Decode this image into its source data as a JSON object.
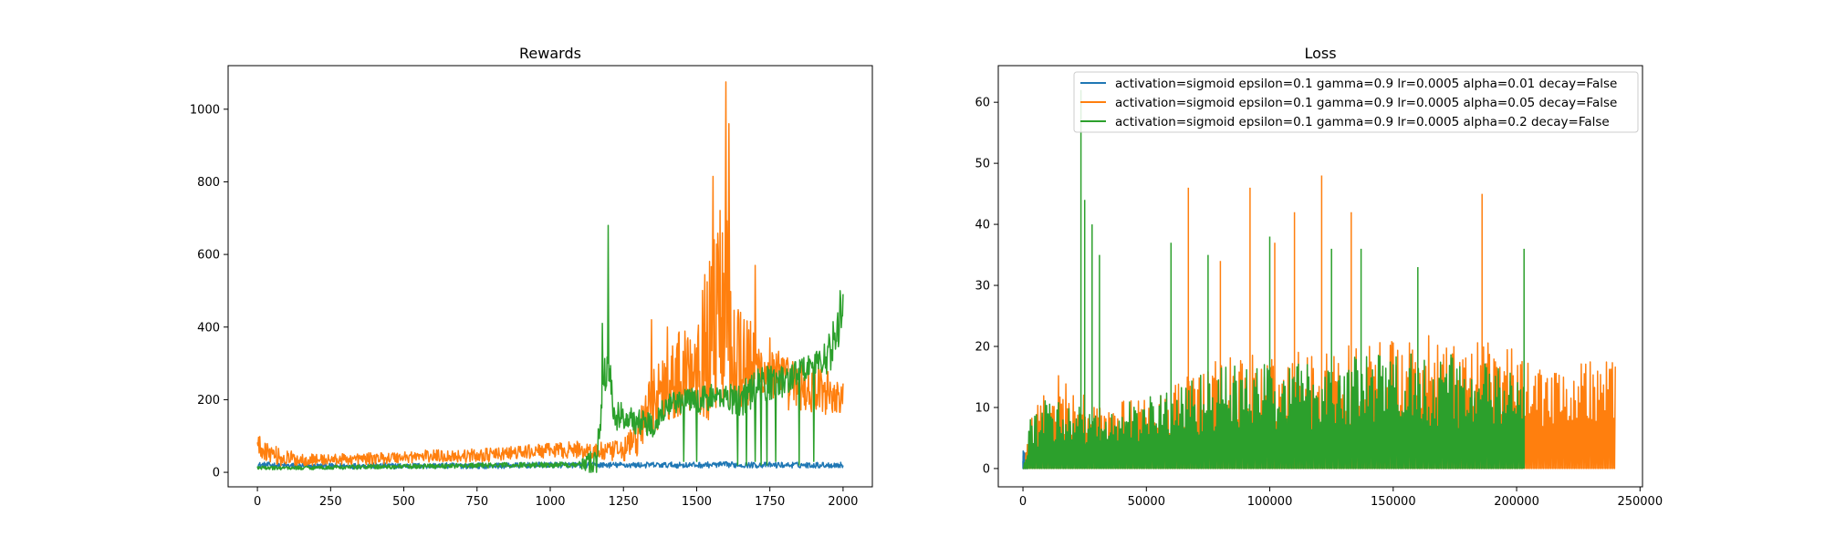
{
  "chart_data": [
    {
      "type": "line",
      "title": "Rewards",
      "xlabel": "",
      "ylabel": "",
      "xlim": [
        -100,
        2100
      ],
      "ylim": [
        -40,
        1120
      ],
      "xticks": [
        0,
        250,
        500,
        750,
        1000,
        1250,
        1500,
        1750,
        2000
      ],
      "yticks": [
        0,
        200,
        400,
        600,
        800,
        1000
      ],
      "grid": false,
      "x_range": [
        0,
        2000
      ],
      "series": [
        {
          "color": "#1f77b4",
          "points": [
            [
              0,
              20
            ],
            [
              50,
              20
            ],
            [
              100,
              18
            ],
            [
              200,
              17
            ],
            [
              300,
              17
            ],
            [
              400,
              18
            ],
            [
              500,
              17
            ],
            [
              600,
              18
            ],
            [
              700,
              18
            ],
            [
              800,
              18
            ],
            [
              900,
              19
            ],
            [
              1000,
              20
            ],
            [
              1100,
              20
            ],
            [
              1200,
              20
            ],
            [
              1300,
              20
            ],
            [
              1400,
              20
            ],
            [
              1500,
              20
            ],
            [
              1600,
              21
            ],
            [
              1700,
              20
            ],
            [
              1800,
              20
            ],
            [
              1900,
              20
            ],
            [
              2000,
              20
            ]
          ],
          "noise": [
            [
              0,
              8
            ],
            [
              2000,
              8
            ]
          ]
        },
        {
          "color": "#ff7f0e",
          "points": [
            [
              0,
              75
            ],
            [
              30,
              60
            ],
            [
              80,
              40
            ],
            [
              150,
              35
            ],
            [
              250,
              35
            ],
            [
              400,
              38
            ],
            [
              500,
              42
            ],
            [
              600,
              45
            ],
            [
              700,
              45
            ],
            [
              800,
              48
            ],
            [
              900,
              55
            ],
            [
              1000,
              60
            ],
            [
              1100,
              62
            ],
            [
              1150,
              58
            ],
            [
              1200,
              55
            ],
            [
              1250,
              60
            ],
            [
              1300,
              100
            ],
            [
              1350,
              200
            ],
            [
              1400,
              240
            ],
            [
              1450,
              270
            ],
            [
              1500,
              320
            ],
            [
              1550,
              370
            ],
            [
              1580,
              470
            ],
            [
              1600,
              500
            ],
            [
              1620,
              380
            ],
            [
              1650,
              320
            ],
            [
              1700,
              290
            ],
            [
              1750,
              270
            ],
            [
              1800,
              250
            ],
            [
              1850,
              230
            ],
            [
              1900,
              230
            ],
            [
              1950,
              220
            ],
            [
              2000,
              200
            ]
          ],
          "noise": [
            [
              0,
              30
            ],
            [
              200,
              15
            ],
            [
              1000,
              20
            ],
            [
              1250,
              30
            ],
            [
              1350,
              90
            ],
            [
              1500,
              150
            ],
            [
              1560,
              260
            ],
            [
              1600,
              300
            ],
            [
              1700,
              90
            ],
            [
              1800,
              75
            ],
            [
              2000,
              60
            ]
          ],
          "spikes": [
            [
              1345,
              420
            ],
            [
              1400,
              400
            ],
            [
              1555,
              815
            ],
            [
              1600,
              1075
            ],
            [
              1610,
              960
            ],
            [
              1700,
              570
            ],
            [
              1750,
              370
            ]
          ]
        },
        {
          "color": "#2ca02c",
          "points": [
            [
              0,
              12
            ],
            [
              100,
              12
            ],
            [
              300,
              14
            ],
            [
              500,
              16
            ],
            [
              700,
              18
            ],
            [
              900,
              20
            ],
            [
              1100,
              22
            ],
            [
              1160,
              30
            ],
            [
              1180,
              250
            ],
            [
              1200,
              280
            ],
            [
              1220,
              160
            ],
            [
              1250,
              150
            ],
            [
              1300,
              140
            ],
            [
              1350,
              130
            ],
            [
              1400,
              190
            ],
            [
              1500,
              200
            ],
            [
              1600,
              210
            ],
            [
              1650,
              200
            ],
            [
              1700,
              230
            ],
            [
              1750,
              250
            ],
            [
              1800,
              250
            ],
            [
              1850,
              280
            ],
            [
              1900,
              300
            ],
            [
              1950,
              320
            ],
            [
              1990,
              420
            ],
            [
              2000,
              420
            ]
          ],
          "noise": [
            [
              0,
              5
            ],
            [
              1100,
              8
            ],
            [
              1170,
              60
            ],
            [
              1250,
              40
            ],
            [
              1400,
              30
            ],
            [
              1600,
              40
            ],
            [
              1700,
              60
            ],
            [
              1900,
              30
            ],
            [
              2000,
              80
            ]
          ],
          "spikes": [
            [
              1198,
              680
            ],
            [
              1178,
              410
            ],
            [
              1990,
              500
            ]
          ],
          "dips": [
            [
              1455,
              30
            ],
            [
              1500,
              30
            ],
            [
              1640,
              20
            ],
            [
              1670,
              20
            ],
            [
              1700,
              30
            ],
            [
              1720,
              20
            ],
            [
              1740,
              20
            ],
            [
              1770,
              30
            ],
            [
              1850,
              20
            ],
            [
              1900,
              30
            ]
          ]
        }
      ]
    },
    {
      "type": "line",
      "title": "Loss",
      "xlabel": "",
      "ylabel": "",
      "xlim": [
        -10000,
        251000
      ],
      "ylim": [
        -3,
        66
      ],
      "xticks": [
        0,
        50000,
        100000,
        150000,
        200000,
        250000
      ],
      "yticks": [
        0,
        10,
        20,
        30,
        40,
        50,
        60
      ],
      "grid": false,
      "legend_position": "top-right",
      "series": [
        {
          "name": "activation=sigmoid epsilon=0.1 gamma=0.9 lr=0.0005 alpha=0.01 decay=False",
          "color": "#1f77b4",
          "x_range": [
            0,
            2000
          ],
          "envelope": [
            [
              0,
              3
            ],
            [
              2000,
              2
            ]
          ]
        },
        {
          "name": "activation=sigmoid epsilon=0.1 gamma=0.9 lr=0.0005 alpha=0.05 decay=False",
          "color": "#ff7f0e",
          "x_range": [
            0,
            240000
          ],
          "envelope": [
            [
              0,
              0
            ],
            [
              5000,
              12
            ],
            [
              15000,
              16
            ],
            [
              30000,
              10
            ],
            [
              50000,
              12
            ],
            [
              80000,
              18
            ],
            [
              120000,
              20
            ],
            [
              160000,
              22
            ],
            [
              200000,
              20
            ],
            [
              240000,
              18
            ]
          ],
          "spikes": [
            [
              67000,
              46
            ],
            [
              92000,
              46
            ],
            [
              121000,
              48
            ],
            [
              133000,
              42
            ],
            [
              186000,
              45
            ],
            [
              110000,
              42
            ],
            [
              102000,
              37
            ],
            [
              80000,
              34
            ]
          ]
        },
        {
          "name": "activation=sigmoid epsilon=0.1 gamma=0.9 lr=0.0005 alpha=0.2 decay=False",
          "color": "#2ca02c",
          "x_range": [
            0,
            203000
          ],
          "envelope": [
            [
              0,
              0
            ],
            [
              3000,
              8
            ],
            [
              10000,
              12
            ],
            [
              20000,
              11
            ],
            [
              30000,
              9
            ],
            [
              50000,
              12
            ],
            [
              80000,
              17
            ],
            [
              120000,
              18
            ],
            [
              160000,
              20
            ],
            [
              203000,
              16
            ]
          ],
          "spikes": [
            [
              23500,
              62
            ],
            [
              25000,
              44
            ],
            [
              28000,
              40
            ],
            [
              31000,
              35
            ],
            [
              60000,
              37
            ],
            [
              75000,
              35
            ],
            [
              100000,
              38
            ],
            [
              125000,
              36
            ],
            [
              137000,
              36
            ],
            [
              160000,
              33
            ],
            [
              203000,
              36
            ]
          ]
        }
      ]
    }
  ]
}
